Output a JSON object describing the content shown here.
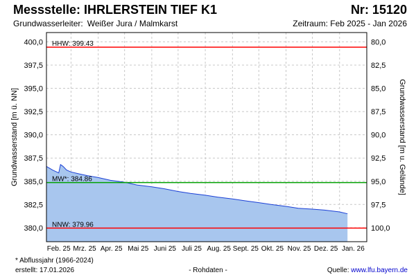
{
  "header": {
    "station_label": "Messstelle: IHRLERSTEIN TIEF K1",
    "nr_label": "Nr: 15120",
    "aquifer_label": "Grundwasserleiter:",
    "aquifer_value": "Weißer Jura / Malmkarst",
    "period_label": "Zeitraum: Feb 2025 - Jan 2026"
  },
  "footer": {
    "note": "* Abflussjahr (1966-2024)",
    "created": "erstellt:  17.01.2026",
    "raw": "- Rohdaten -",
    "source_label": "Quelle:  ",
    "source_url": "www.lfu.bayern.de"
  },
  "colors": {
    "hhw_line": "#ff0000",
    "nnw_line": "#ff0000",
    "mw_line": "#00a000",
    "series_line": "#1a3fd6",
    "series_fill": "#a8c6ee",
    "grid": "#c8c8c8"
  },
  "chart_data": {
    "type": "area",
    "ylabel": "Grundwasserstand [m ü. NN]",
    "ylabel_right": "Grundwasserstand [m u. Gelände]",
    "ylim": [
      378.5,
      401.0
    ],
    "yticks": [
      "400,0",
      "397,5",
      "395,0",
      "392,5",
      "390,0",
      "387,5",
      "385,0",
      "382,5",
      "380,0"
    ],
    "yticks_right": [
      "80,0",
      "82,5",
      "85,0",
      "87,5",
      "90,0",
      "92,5",
      "95,0",
      "97,5",
      "100,0"
    ],
    "xticks": [
      "Feb. 25",
      "Mrz. 25",
      "Apr. 25",
      "Mai 25",
      "Juni 25",
      "Juli 25",
      "Aug. 25",
      "Sept. 25",
      "Okt. 25",
      "Nov. 25",
      "Dez. 25",
      "Jan. 26"
    ],
    "grid": true,
    "reference_lines": [
      {
        "label": "HHW: 399.43",
        "value": 399.43
      },
      {
        "label": "MW*: 384.86",
        "value": 384.86
      },
      {
        "label": "NNW: 379.96",
        "value": 379.96
      }
    ],
    "series": [
      {
        "x": [
          "2025-02-01",
          "2025-02-08",
          "2025-02-15",
          "2025-02-17",
          "2025-02-20",
          "2025-02-24",
          "2025-03-01",
          "2025-03-10",
          "2025-03-20",
          "2025-04-01",
          "2025-04-15",
          "2025-05-01",
          "2025-05-15",
          "2025-06-01",
          "2025-06-15",
          "2025-07-01",
          "2025-07-15",
          "2025-08-01",
          "2025-08-15",
          "2025-09-01",
          "2025-09-15",
          "2025-10-01",
          "2025-10-15",
          "2025-11-01",
          "2025-11-15",
          "2025-12-01",
          "2025-12-15",
          "2026-01-01",
          "2026-01-10"
        ],
        "values": [
          386.6,
          386.2,
          385.9,
          386.8,
          386.6,
          386.2,
          386.0,
          385.8,
          385.6,
          385.4,
          385.1,
          384.9,
          384.6,
          384.4,
          384.2,
          383.9,
          383.7,
          383.5,
          383.3,
          383.1,
          382.9,
          382.7,
          382.5,
          382.3,
          382.1,
          382.0,
          381.9,
          381.7,
          381.5
        ]
      }
    ]
  }
}
